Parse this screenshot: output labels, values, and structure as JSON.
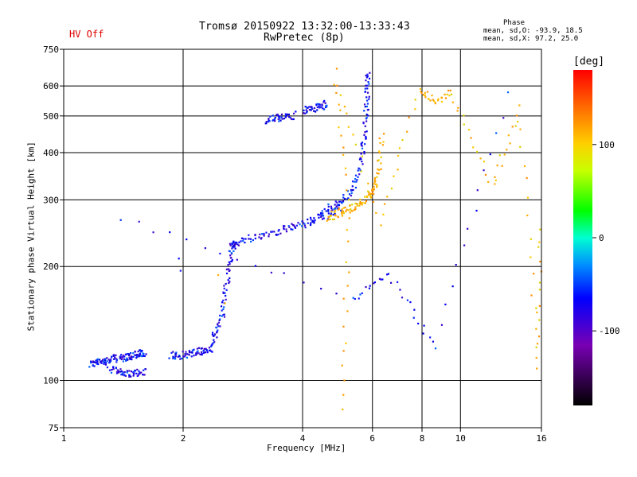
{
  "status": {
    "hv": "HV Off"
  },
  "header": {
    "title_line1": "Tromsø 20150922 13:32:00-13:33:43",
    "title_line2": "RwPretec (8p)",
    "phase_heading": "Phase",
    "phase_o": "mean, sd,O: -93.9, 18.5",
    "phase_x": "mean, sd,X:  97.2, 25.0"
  },
  "colorbar": {
    "title": "[deg]",
    "min": -180,
    "max": 180,
    "ticks": [
      100,
      0,
      -100
    ]
  },
  "colors": {
    "hv_off": "#e00000",
    "grid": "#000000"
  },
  "chart_data": {
    "type": "scatter",
    "title": "Tromsø 20150922 13:32:00-13:33:43",
    "subtitle": "RwPretec (8p)",
    "xlabel": "Frequency [MHz]",
    "ylabel": "Stationary phase Virtual Height [km]",
    "xscale": "log",
    "yscale": "log",
    "xlim": [
      1,
      16
    ],
    "ylim": [
      75,
      750
    ],
    "xticks": [
      1,
      2,
      4,
      6,
      8,
      10,
      16
    ],
    "yticks": [
      75,
      100,
      200,
      300,
      400,
      500,
      600,
      750
    ],
    "grid": true,
    "series": [
      {
        "name": "O",
        "color_by": "phase",
        "traces": [
          {
            "x": [
              1.16,
              1.2,
              1.25,
              1.3,
              1.35,
              1.4,
              1.45,
              1.5,
              1.55,
              1.6
            ],
            "y": [
              111,
              112,
              113,
              114,
              115,
              115,
              116,
              117,
              118,
              119
            ]
          },
          {
            "x": [
              1.3,
              1.38,
              1.45,
              1.52,
              1.6
            ],
            "y": [
              107,
              106,
              105,
              105,
              106
            ]
          },
          {
            "x": [
              1.85,
              1.95,
              2.05,
              2.15,
              2.25,
              2.35
            ],
            "y": [
              117,
              117,
              118,
              119,
              120,
              122
            ]
          },
          {
            "x": [
              2.35,
              2.42,
              2.5,
              2.55,
              2.6,
              2.65,
              2.7
            ],
            "y": [
              125,
              135,
              150,
              175,
              205,
              225,
              235
            ]
          },
          {
            "x": [
              2.6,
              2.9,
              3.2,
              3.5,
              3.8,
              4.1,
              4.4,
              4.7,
              5.0
            ],
            "y": [
              228,
              238,
              245,
              250,
              256,
              262,
              270,
              278,
              290
            ]
          },
          {
            "x": [
              4.4,
              4.8,
              5.1,
              5.4,
              5.6,
              5.7,
              5.75,
              5.8,
              5.82
            ],
            "y": [
              280,
              292,
              305,
              330,
              380,
              440,
              520,
              600,
              650
            ]
          },
          {
            "x": [
              3.2,
              3.4,
              3.6,
              3.8
            ],
            "y": [
              490,
              495,
              500,
              505
            ]
          },
          {
            "x": [
              4.0,
              4.2,
              4.4,
              4.6
            ],
            "y": [
              520,
              525,
              530,
              545
            ]
          },
          {
            "x": [
              1.95,
              1.97
            ],
            "y": [
              210,
              195
            ]
          },
          {
            "x": [
              1.4,
              5.3,
              6.6,
              8.6,
              13.5
            ],
            "y": [
              270,
              165,
              190,
              125,
              640
            ]
          }
        ]
      },
      {
        "name": "X",
        "color_by": "phase",
        "traces": [
          {
            "x": [
              4.6,
              4.9,
              5.2,
              5.5,
              5.8,
              6.0,
              6.2,
              6.3
            ],
            "y": [
              270,
              278,
              285,
              292,
              305,
              320,
              360,
              450
            ]
          },
          {
            "x": [
              5.0,
              5.2,
              4.8,
              6.2,
              7.8,
              8.6,
              9.4,
              12.0,
              14.0,
              15.6,
              15.8
            ],
            "y": [
              85,
              270,
              660,
              260,
              590,
              550,
              580,
              330,
              530,
              110,
              270
            ]
          },
          {
            "x": [
              2.45,
              2.55
            ],
            "y": [
              190,
              160
            ]
          }
        ]
      }
    ]
  }
}
